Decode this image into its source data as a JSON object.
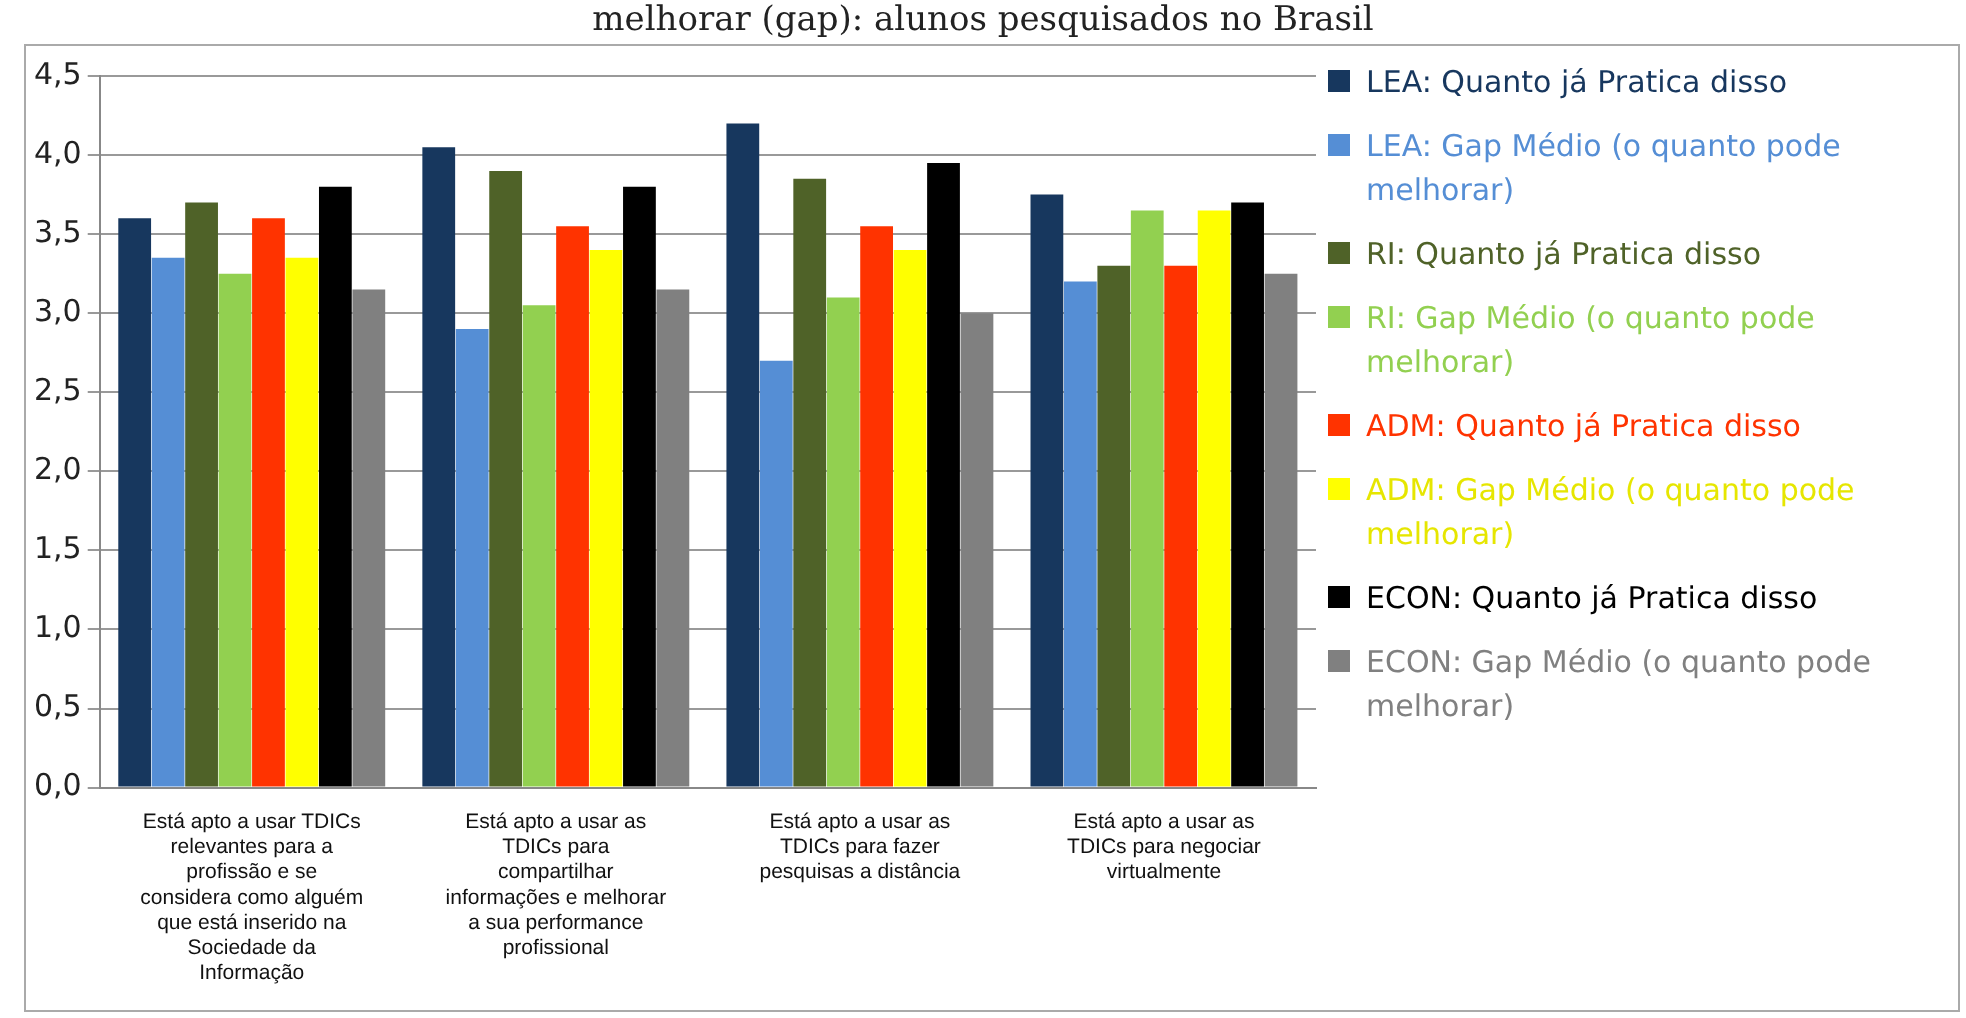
{
  "chart_data": {
    "type": "bar",
    "title": "melhorar (gap): alunos pesquisados no Brasil",
    "categories": [
      "Está apto a usar TDICs relevantes para a profissão e se considera como alguém que está inserido na Sociedade da Informação",
      "Está apto a usar as TDICs para compartilhar informações e melhorar a sua performance profissional",
      "Está apto a usar as TDICs para fazer pesquisas a distância",
      "Está apto a usar as TDICs para negociar virtualmente"
    ],
    "series": [
      {
        "name": "LEA: Quanto já Pratica disso",
        "color": "#17375e",
        "values": [
          3.6,
          4.05,
          4.2,
          3.75
        ]
      },
      {
        "name": "LEA: Gap Médio (o quanto pode melhorar)",
        "color": "#558ed5",
        "values": [
          3.35,
          2.9,
          2.7,
          3.2
        ]
      },
      {
        "name": "RI: Quanto já Pratica disso",
        "color": "#4f6228",
        "values": [
          3.7,
          3.9,
          3.85,
          3.3
        ]
      },
      {
        "name": "RI: Gap Médio (o quanto pode melhorar)",
        "color": "#92d050",
        "values": [
          3.25,
          3.05,
          3.1,
          3.65
        ]
      },
      {
        "name": "ADM: Quanto já Pratica disso",
        "color": "#ff3300",
        "values": [
          3.6,
          3.55,
          3.55,
          3.3
        ]
      },
      {
        "name": "ADM: Gap Médio (o quanto pode melhorar)",
        "color": "#ffff00",
        "values": [
          3.35,
          3.4,
          3.4,
          3.65
        ]
      },
      {
        "name": "ECON: Quanto já Pratica disso",
        "color": "#000000",
        "values": [
          3.8,
          3.8,
          3.95,
          3.7
        ]
      },
      {
        "name": "ECON: Gap Médio (o quanto pode melhorar)",
        "color": "#808080",
        "values": [
          3.15,
          3.15,
          3.0,
          3.25
        ]
      }
    ],
    "ylim": [
      0,
      4.5
    ],
    "yticks": [
      {
        "value": 0,
        "label": "0,0"
      },
      {
        "value": 0.5,
        "label": "0,5"
      },
      {
        "value": 1,
        "label": "1,0"
      },
      {
        "value": 1.5,
        "label": "1,5"
      },
      {
        "value": 2,
        "label": "2,0"
      },
      {
        "value": 2.5,
        "label": "2,5"
      },
      {
        "value": 3,
        "label": "3,0"
      },
      {
        "value": 3.5,
        "label": "3,5"
      },
      {
        "value": 4,
        "label": "4,0"
      },
      {
        "value": 4.5,
        "label": "4,5"
      }
    ],
    "grid": "y",
    "legend": "right"
  }
}
